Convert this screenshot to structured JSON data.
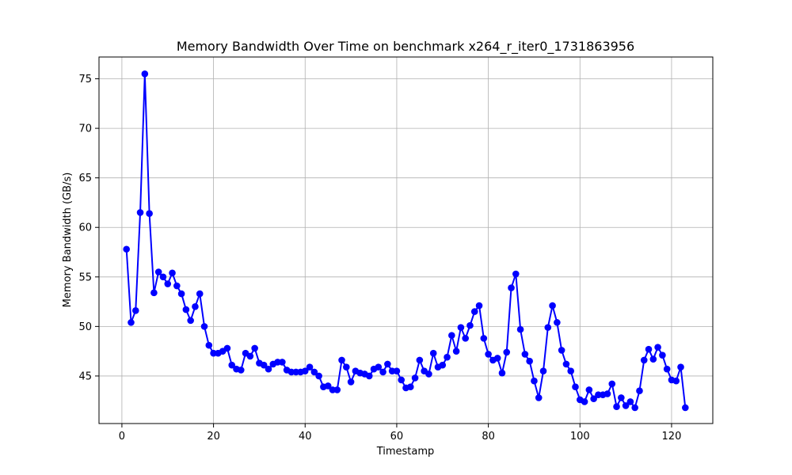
{
  "chart_data": {
    "type": "line",
    "title": "Memory Bandwidth Over Time on benchmark x264_r_iter0_1731863956",
    "xlabel": "Timestamp",
    "ylabel": "Memory Bandwidth (GB/s)",
    "xlim": [
      -5,
      129
    ],
    "ylim": [
      40.2,
      77.2
    ],
    "xticks": [
      0,
      20,
      40,
      60,
      80,
      100,
      120
    ],
    "yticks": [
      45,
      50,
      55,
      60,
      65,
      70,
      75
    ],
    "grid": true,
    "series_color": "#0000ff",
    "x": [
      1,
      2,
      3,
      4,
      5,
      6,
      7,
      8,
      9,
      10,
      11,
      12,
      13,
      14,
      15,
      16,
      17,
      18,
      19,
      20,
      21,
      22,
      23,
      24,
      25,
      26,
      27,
      28,
      29,
      30,
      31,
      32,
      33,
      34,
      35,
      36,
      37,
      38,
      39,
      40,
      41,
      42,
      43,
      44,
      45,
      46,
      47,
      48,
      49,
      50,
      51,
      52,
      53,
      54,
      55,
      56,
      57,
      58,
      59,
      60,
      61,
      62,
      63,
      64,
      65,
      66,
      67,
      68,
      69,
      70,
      71,
      72,
      73,
      74,
      75,
      76,
      77,
      78,
      79,
      80,
      81,
      82,
      83,
      84,
      85,
      86,
      87,
      88,
      89,
      90,
      91,
      92,
      93,
      94,
      95,
      96,
      97,
      98,
      99,
      100,
      101,
      102,
      103,
      104,
      105,
      106,
      107,
      108,
      109,
      110,
      111,
      112,
      113,
      114,
      115,
      116,
      117,
      118,
      119,
      120,
      121,
      122,
      123
    ],
    "values": [
      57.8,
      50.4,
      51.6,
      61.5,
      75.5,
      61.4,
      53.4,
      55.5,
      55.0,
      54.3,
      55.4,
      54.1,
      53.3,
      51.7,
      50.6,
      52.0,
      53.3,
      50.0,
      48.1,
      47.3,
      47.3,
      47.5,
      47.8,
      46.1,
      45.7,
      45.6,
      47.3,
      47.0,
      47.8,
      46.3,
      46.1,
      45.7,
      46.2,
      46.4,
      46.4,
      45.6,
      45.4,
      45.4,
      45.4,
      45.5,
      45.9,
      45.4,
      45.0,
      43.9,
      44.0,
      43.6,
      43.6,
      46.6,
      45.9,
      44.4,
      45.5,
      45.3,
      45.2,
      45.0,
      45.7,
      45.9,
      45.4,
      46.2,
      45.5,
      45.5,
      44.6,
      43.8,
      43.9,
      44.8,
      46.6,
      45.5,
      45.2,
      47.3,
      45.9,
      46.1,
      46.9,
      49.1,
      47.5,
      49.9,
      48.8,
      50.1,
      51.5,
      52.1,
      48.8,
      47.2,
      46.6,
      46.8,
      45.3,
      47.4,
      53.9,
      55.3,
      49.7,
      47.2,
      46.5,
      44.5,
      42.8,
      45.5,
      49.9,
      52.1,
      50.4,
      47.6,
      46.2,
      45.5,
      43.9,
      42.6,
      42.4,
      43.6,
      42.7,
      43.1,
      43.1,
      43.2,
      44.2,
      41.9,
      42.8,
      42.0,
      42.4,
      41.8,
      43.5,
      46.6,
      47.7,
      46.7,
      47.9,
      47.1,
      45.7,
      44.6,
      44.5,
      45.9,
      41.8
    ]
  }
}
